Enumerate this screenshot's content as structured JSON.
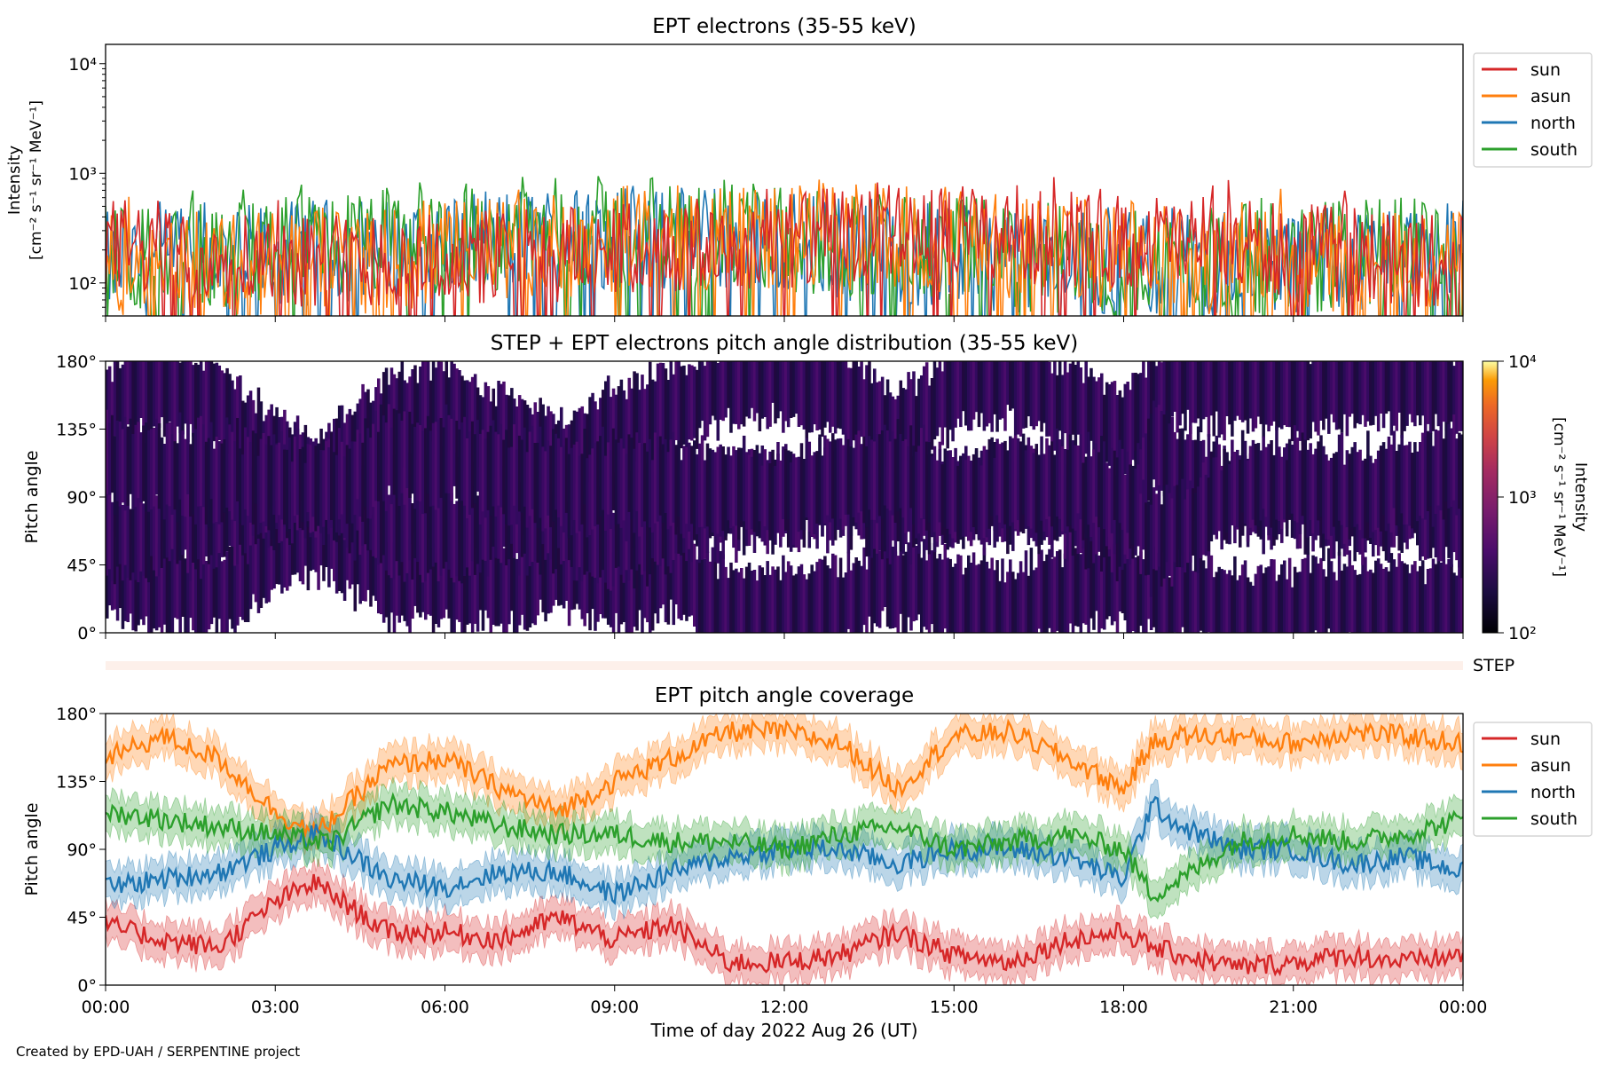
{
  "figure": {
    "credit": "Created by EPD-UAH / SERPENTINE project",
    "xlabel": "Time of day 2022 Aug 26 (UT)",
    "xticks": [
      "00:00",
      "03:00",
      "06:00",
      "09:00",
      "12:00",
      "15:00",
      "18:00",
      "21:00",
      "00:00"
    ],
    "step_label": "STEP"
  },
  "chart_data": [
    {
      "type": "line",
      "title": "EPT electrons (35-55 keV)",
      "ylabel_line1": "Intensity",
      "ylabel_line2": "[cm⁻² s⁻¹ sr⁻¹ MeV⁻¹]",
      "yscale": "log",
      "ylim": [
        50,
        15000
      ],
      "yticks": [
        {
          "value": 100,
          "label": "10²"
        },
        {
          "value": 1000,
          "label": "10³"
        },
        {
          "value": 10000,
          "label": "10⁴"
        }
      ],
      "xlim_hours": [
        0,
        24
      ],
      "legend": "right",
      "series": [
        {
          "name": "sun",
          "color": "#d62728",
          "typical_range": [
            60,
            600
          ],
          "peak": 930
        },
        {
          "name": "asun",
          "color": "#ff7f0e",
          "typical_range": [
            50,
            650
          ],
          "peak": 850
        },
        {
          "name": "north",
          "color": "#1f77b4",
          "typical_range": [
            50,
            600
          ],
          "peak": 700
        },
        {
          "name": "south",
          "color": "#2ca02c",
          "typical_range": [
            50,
            700
          ],
          "peak": 850
        }
      ]
    },
    {
      "type": "heatmap",
      "title": "STEP + EPT electrons pitch angle distribution (35-55 keV)",
      "ylabel": "Pitch angle",
      "ylim": [
        0,
        180
      ],
      "yticks": [
        {
          "value": 0,
          "label": "0°"
        },
        {
          "value": 45,
          "label": "45°"
        },
        {
          "value": 90,
          "label": "90°"
        },
        {
          "value": 135,
          "label": "135°"
        },
        {
          "value": 180,
          "label": "180°"
        }
      ],
      "colorbar": {
        "label_line1": "Intensity",
        "label_line2": "[cm⁻² s⁻¹ sr⁻¹ MeV⁻¹]",
        "scale": "log",
        "range": [
          100,
          10000
        ],
        "ticks": [
          "10²",
          "10³",
          "10⁴"
        ],
        "colormap": "inferno"
      }
    },
    {
      "type": "line",
      "title": "EPT pitch angle coverage",
      "ylabel": "Pitch angle",
      "ylim": [
        0,
        180
      ],
      "yticks": [
        {
          "value": 0,
          "label": "0°"
        },
        {
          "value": 45,
          "label": "45°"
        },
        {
          "value": 90,
          "label": "90°"
        },
        {
          "value": 135,
          "label": "135°"
        },
        {
          "value": 180,
          "label": "180°"
        }
      ],
      "xlim_hours": [
        0,
        24
      ],
      "legend": "right",
      "hours": [
        0,
        1,
        2,
        3,
        3.7,
        4,
        5,
        6,
        7,
        8,
        9,
        10,
        11,
        12,
        13,
        14,
        15,
        16,
        17,
        18,
        18.5,
        19,
        20,
        21,
        22,
        23,
        24
      ],
      "series": [
        {
          "name": "sun",
          "color": "#d62728",
          "values": [
            40,
            30,
            25,
            55,
            68,
            60,
            35,
            35,
            30,
            45,
            30,
            40,
            15,
            15,
            20,
            35,
            20,
            15,
            30,
            35,
            25,
            20,
            12,
            15,
            20,
            15,
            20
          ]
        },
        {
          "name": "asun",
          "color": "#ff7f0e",
          "values": [
            150,
            165,
            150,
            115,
            100,
            110,
            145,
            150,
            130,
            115,
            135,
            150,
            168,
            168,
            160,
            130,
            165,
            168,
            150,
            130,
            160,
            165,
            165,
            160,
            168,
            165,
            160
          ]
        },
        {
          "name": "north",
          "color": "#1f77b4",
          "values": [
            65,
            70,
            75,
            90,
            100,
            95,
            70,
            65,
            75,
            75,
            60,
            75,
            85,
            90,
            90,
            80,
            90,
            90,
            85,
            70,
            120,
            105,
            90,
            90,
            80,
            85,
            75
          ]
        },
        {
          "name": "south",
          "color": "#2ca02c",
          "values": [
            115,
            110,
            105,
            100,
            95,
            95,
            120,
            115,
            105,
            100,
            100,
            95,
            95,
            90,
            100,
            105,
            90,
            95,
            100,
            90,
            60,
            70,
            95,
            100,
            95,
            100,
            110
          ]
        }
      ],
      "band_halfwidth_deg": 12
    }
  ]
}
